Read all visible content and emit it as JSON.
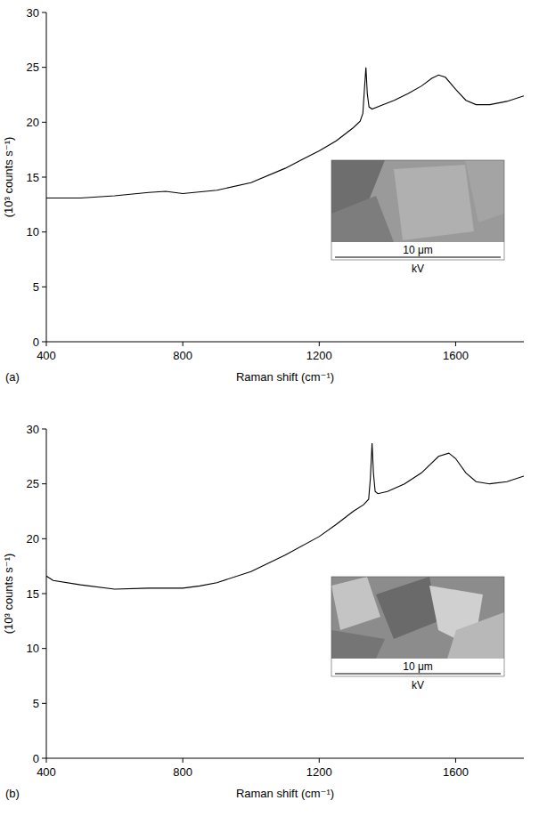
{
  "chart_data": [
    {
      "type": "line",
      "panel_label": "(a)",
      "x_label": "Raman shift (cm⁻¹)",
      "y_label": "(10³ counts s⁻¹)",
      "xlim": [
        400,
        1800
      ],
      "ylim": [
        0,
        30
      ],
      "xticks": [
        400,
        800,
        1200,
        1600
      ],
      "yticks": [
        0,
        5,
        10,
        15,
        20,
        25,
        30
      ],
      "color": "#000000",
      "x": [
        400,
        500,
        600,
        700,
        750,
        800,
        900,
        1000,
        1100,
        1150,
        1200,
        1250,
        1300,
        1320,
        1328,
        1333,
        1337,
        1341,
        1346,
        1355,
        1380,
        1420,
        1460,
        1500,
        1530,
        1550,
        1570,
        1600,
        1630,
        1660,
        1700,
        1750,
        1800
      ],
      "values": [
        13.1,
        13.1,
        13.3,
        13.6,
        13.7,
        13.5,
        13.8,
        14.5,
        15.8,
        16.6,
        17.4,
        18.3,
        19.5,
        20.1,
        20.8,
        23.2,
        25.0,
        22.6,
        21.4,
        21.2,
        21.5,
        22.0,
        22.6,
        23.3,
        24.0,
        24.3,
        24.1,
        23.0,
        22.0,
        21.6,
        21.6,
        21.9,
        22.4
      ],
      "inset_scale_label": "10 μm",
      "inset_label": "kV"
    },
    {
      "type": "line",
      "panel_label": "(b)",
      "x_label": "Raman shift (cm⁻¹)",
      "y_label": "(10³ counts s⁻¹)",
      "xlim": [
        400,
        1800
      ],
      "ylim": [
        0,
        30
      ],
      "xticks": [
        400,
        800,
        1200,
        1600
      ],
      "yticks": [
        0,
        5,
        10,
        15,
        20,
        25,
        30
      ],
      "color": "#000000",
      "x": [
        400,
        420,
        500,
        600,
        700,
        800,
        850,
        900,
        1000,
        1100,
        1200,
        1250,
        1300,
        1330,
        1345,
        1350,
        1355,
        1359,
        1364,
        1372,
        1400,
        1450,
        1500,
        1550,
        1580,
        1600,
        1630,
        1660,
        1700,
        1750,
        1800
      ],
      "values": [
        16.6,
        16.2,
        15.8,
        15.4,
        15.5,
        15.5,
        15.7,
        16.0,
        17.0,
        18.5,
        20.2,
        21.3,
        22.5,
        23.1,
        23.6,
        25.5,
        28.7,
        26.0,
        24.3,
        24.1,
        24.3,
        25.0,
        26.0,
        27.5,
        27.8,
        27.3,
        26.0,
        25.2,
        25.0,
        25.2,
        25.7
      ],
      "inset_scale_label": "10 μm",
      "inset_label": "kV"
    }
  ]
}
